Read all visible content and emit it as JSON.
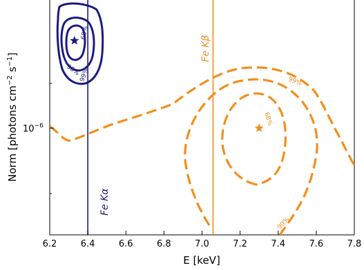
{
  "chart_data": {
    "type": "line",
    "xlabel": "E [keV]",
    "ylabel_main": "Norm [photons cm",
    "ylabel_sup1": "−2",
    "ylabel_mid": " s",
    "ylabel_sup2": "−1",
    "ylabel_end": "]",
    "xlim": [
      6.2,
      7.8
    ],
    "y_scale": "log",
    "y_tick_base": "10",
    "y_tick_exp": "−6",
    "x_ticks": [
      "6.2",
      "6.4",
      "6.6",
      "6.8",
      "7.0",
      "7.2",
      "7.4",
      "7.6",
      "7.8"
    ],
    "x_tick_values": [
      6.2,
      6.4,
      6.6,
      6.8,
      7.0,
      7.2,
      7.4,
      7.6,
      7.8
    ],
    "vertical_lines": [
      {
        "x": 6.4,
        "label": "Fe Kα",
        "color": "#1a1a80"
      },
      {
        "x": 7.058,
        "label": "Fe Kβ",
        "color": "#f28e1c"
      }
    ],
    "fits": [
      {
        "color": "#1a1a80",
        "best_fit_e": 6.33,
        "contour_labels": [
          "90%",
          "99%",
          "68%"
        ]
      },
      {
        "color": "#f28e1c",
        "best_fit_e": 7.3,
        "best_fit_norm": 1e-06,
        "contour_labels": [
          "99%",
          "68%",
          "90%"
        ]
      }
    ]
  }
}
